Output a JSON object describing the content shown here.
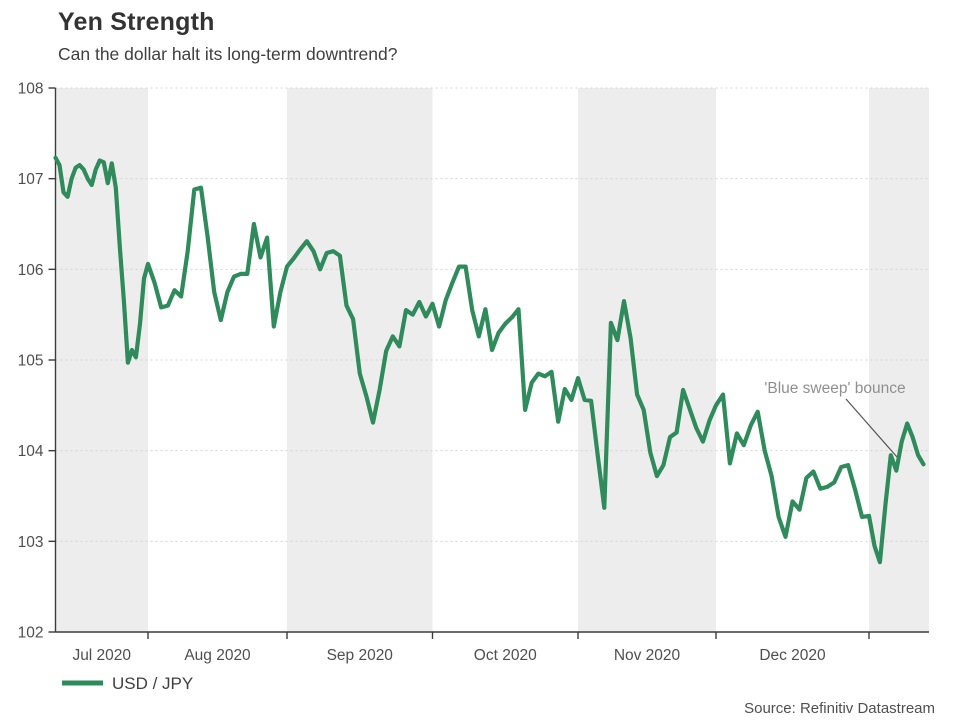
{
  "header": {
    "title": "Yen Strength",
    "subtitle": "Can the dollar halt its long-term downtrend?"
  },
  "legend": {
    "label": "USD / JPY"
  },
  "source": {
    "text": "Source: Refinitiv Datastream"
  },
  "colors": {
    "line": "#2f8b5b",
    "band": "#ededed",
    "grid": "#d4d4d4",
    "axis": "#3c3c3c",
    "tick_label": "#4f4f4f",
    "annotation_text": "#8f8f8f",
    "annotation_leader": "#555555"
  },
  "chart_data": {
    "type": "line",
    "title": "Yen Strength",
    "subtitle": "Can the dollar halt its long-term downtrend?",
    "ylabel": "",
    "xlabel": "",
    "ylim": [
      102,
      108
    ],
    "y_ticks": [
      102,
      103,
      104,
      105,
      106,
      107,
      108
    ],
    "grid": "horizontal-dotted",
    "legend_position": "bottom-left",
    "x_tick_labels": [
      {
        "month": "2020-07",
        "label": "Jul 2020"
      },
      {
        "month": "2020-08",
        "label": "Aug 2020"
      },
      {
        "month": "2020-09",
        "label": "Sep 2020"
      },
      {
        "month": "2020-10",
        "label": "Oct 2020"
      },
      {
        "month": "2020-11",
        "label": "Nov 2020"
      },
      {
        "month": "2020-12",
        "label": "Dec 2020"
      }
    ],
    "shaded_months": [
      "2020-07",
      "2020-09",
      "2020-11",
      "2021-01"
    ],
    "annotation": {
      "text": "'Blue sweep' bounce"
    },
    "series": [
      {
        "name": "USD / JPY",
        "color": "#2f8b5b",
        "dates": [
          "2020-07-01",
          "2020-07-02",
          "2020-07-03",
          "2020-07-06",
          "2020-07-07",
          "2020-07-08",
          "2020-07-09",
          "2020-07-10",
          "2020-07-13",
          "2020-07-14",
          "2020-07-15",
          "2020-07-16",
          "2020-07-17",
          "2020-07-20",
          "2020-07-21",
          "2020-07-22",
          "2020-07-23",
          "2020-07-24",
          "2020-07-27",
          "2020-07-28",
          "2020-07-29",
          "2020-07-30",
          "2020-07-31",
          "2020-08-03",
          "2020-08-04",
          "2020-08-05",
          "2020-08-06",
          "2020-08-07",
          "2020-08-10",
          "2020-08-11",
          "2020-08-12",
          "2020-08-13",
          "2020-08-14",
          "2020-08-17",
          "2020-08-18",
          "2020-08-19",
          "2020-08-20",
          "2020-08-21",
          "2020-08-24",
          "2020-08-25",
          "2020-08-26",
          "2020-08-27",
          "2020-08-28",
          "2020-08-31",
          "2020-09-01",
          "2020-09-02",
          "2020-09-03",
          "2020-09-04",
          "2020-09-07",
          "2020-09-08",
          "2020-09-09",
          "2020-09-10",
          "2020-09-11",
          "2020-09-14",
          "2020-09-15",
          "2020-09-16",
          "2020-09-17",
          "2020-09-18",
          "2020-09-21",
          "2020-09-22",
          "2020-09-23",
          "2020-09-24",
          "2020-09-25",
          "2020-09-28",
          "2020-09-29",
          "2020-09-30",
          "2020-10-01",
          "2020-10-02",
          "2020-10-05",
          "2020-10-06",
          "2020-10-07",
          "2020-10-08",
          "2020-10-09",
          "2020-10-12",
          "2020-10-13",
          "2020-10-14",
          "2020-10-15",
          "2020-10-16",
          "2020-10-19",
          "2020-10-20",
          "2020-10-21",
          "2020-10-22",
          "2020-10-23",
          "2020-10-26",
          "2020-10-27",
          "2020-10-28",
          "2020-10-29",
          "2020-10-30",
          "2020-11-02",
          "2020-11-03",
          "2020-11-04",
          "2020-11-05",
          "2020-11-06",
          "2020-11-09",
          "2020-11-10",
          "2020-11-11",
          "2020-11-12",
          "2020-11-13",
          "2020-11-16",
          "2020-11-17",
          "2020-11-18",
          "2020-11-19",
          "2020-11-20",
          "2020-11-23",
          "2020-11-24",
          "2020-11-25",
          "2020-11-26",
          "2020-11-27",
          "2020-11-30",
          "2020-12-01",
          "2020-12-02",
          "2020-12-03",
          "2020-12-04",
          "2020-12-07",
          "2020-12-08",
          "2020-12-09",
          "2020-12-10",
          "2020-12-11",
          "2020-12-14",
          "2020-12-15",
          "2020-12-16",
          "2020-12-17",
          "2020-12-18",
          "2020-12-21",
          "2020-12-22",
          "2020-12-23",
          "2020-12-24",
          "2020-12-28",
          "2020-12-29",
          "2020-12-30",
          "2020-12-31",
          "2021-01-04",
          "2021-01-05",
          "2021-01-06",
          "2021-01-07",
          "2021-01-08",
          "2021-01-11",
          "2021-01-12",
          "2021-01-13",
          "2021-01-14",
          "2021-01-15",
          "2021-01-18"
        ],
        "values": [
          107.23,
          107.15,
          106.85,
          106.8,
          107.0,
          107.12,
          107.15,
          107.1,
          107.0,
          106.93,
          107.1,
          107.2,
          107.18,
          106.95,
          107.17,
          106.9,
          106.25,
          105.65,
          104.97,
          105.11,
          105.03,
          105.4,
          105.9,
          106.06,
          105.85,
          105.58,
          105.6,
          105.77,
          105.7,
          106.2,
          106.88,
          106.9,
          106.36,
          105.75,
          105.44,
          105.75,
          105.92,
          105.95,
          105.95,
          106.5,
          106.13,
          106.35,
          105.37,
          105.75,
          106.03,
          106.12,
          106.22,
          106.31,
          106.2,
          106.0,
          106.18,
          106.2,
          106.15,
          105.6,
          105.45,
          104.85,
          104.6,
          104.31,
          104.67,
          105.1,
          105.26,
          105.15,
          105.55,
          105.5,
          105.64,
          105.48,
          105.62,
          105.37,
          105.66,
          105.85,
          106.03,
          106.03,
          105.55,
          105.26,
          105.56,
          105.11,
          105.3,
          105.4,
          105.47,
          105.56,
          104.45,
          104.75,
          104.85,
          104.82,
          104.87,
          104.32,
          104.68,
          104.56,
          104.8,
          104.56,
          104.55,
          103.95,
          103.37,
          105.41,
          105.22,
          105.65,
          105.24,
          104.62,
          104.45,
          103.98,
          103.72,
          103.84,
          104.15,
          104.2,
          104.67,
          104.46,
          104.25,
          104.1,
          104.33,
          104.5,
          104.62,
          103.86,
          104.19,
          104.06,
          104.28,
          104.43,
          104.0,
          103.72,
          103.27,
          103.05,
          103.44,
          103.35,
          103.7,
          103.77,
          103.58,
          103.6,
          103.65,
          103.82,
          103.84,
          103.57,
          103.27,
          103.28,
          102.95,
          102.77,
          103.4,
          103.95,
          103.78,
          104.1,
          104.3,
          104.15,
          103.95,
          103.85
        ]
      }
    ]
  }
}
